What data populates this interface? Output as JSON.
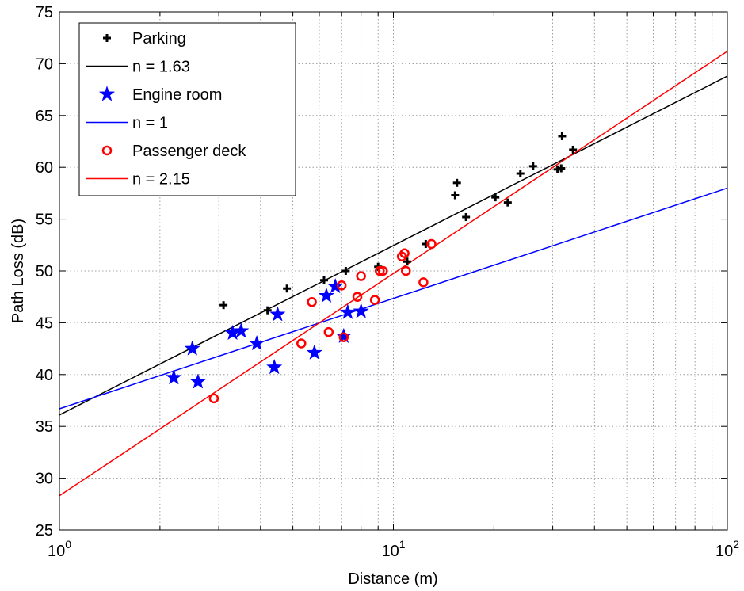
{
  "chart_data": {
    "type": "scatter",
    "title": "",
    "xlabel": "Distance (m)",
    "ylabel": "Path Loss (dB)",
    "xscale": "log",
    "xlim": [
      1,
      100
    ],
    "ylim": [
      25,
      75
    ],
    "grid": true,
    "legend_position": "top-left",
    "x_ticks": [
      {
        "value": 1,
        "base": "10",
        "exp": "0"
      },
      {
        "value": 10,
        "base": "10",
        "exp": "1"
      },
      {
        "value": 100,
        "base": "10",
        "exp": "2"
      }
    ],
    "y_ticks": [
      "25",
      "30",
      "35",
      "40",
      "45",
      "50",
      "55",
      "60",
      "65",
      "70",
      "75"
    ],
    "series": [
      {
        "name": "Parking",
        "kind": "points",
        "marker": "plus",
        "color": "#000000",
        "points": [
          [
            3.1,
            46.7
          ],
          [
            4.2,
            46.2
          ],
          [
            4.8,
            48.3
          ],
          [
            6.2,
            49.1
          ],
          [
            7.2,
            50.0
          ],
          [
            9.0,
            50.4
          ],
          [
            11.0,
            50.9
          ],
          [
            12.5,
            52.6
          ],
          [
            15.3,
            57.3
          ],
          [
            15.5,
            58.5
          ],
          [
            16.5,
            55.2
          ],
          [
            20.2,
            57.1
          ],
          [
            22.0,
            56.6
          ],
          [
            24.0,
            59.4
          ],
          [
            26.2,
            60.1
          ],
          [
            31.0,
            59.8
          ],
          [
            31.8,
            59.9
          ],
          [
            32.0,
            63.0
          ],
          [
            34.5,
            61.7
          ]
        ]
      },
      {
        "name": "n = 1.63",
        "kind": "line",
        "color": "#000000",
        "points": [
          [
            1,
            36.1
          ],
          [
            100,
            68.8
          ]
        ]
      },
      {
        "name": "Engine room",
        "kind": "points",
        "marker": "star",
        "color": "#0000ff",
        "points": [
          [
            2.2,
            39.7
          ],
          [
            2.5,
            42.5
          ],
          [
            2.6,
            39.3
          ],
          [
            3.3,
            44.0
          ],
          [
            3.5,
            44.2
          ],
          [
            3.9,
            43.0
          ],
          [
            4.4,
            40.7
          ],
          [
            4.5,
            45.8
          ],
          [
            5.8,
            42.1
          ],
          [
            6.3,
            47.6
          ],
          [
            6.7,
            48.5
          ],
          [
            7.1,
            43.7
          ],
          [
            7.3,
            46.0
          ],
          [
            8.0,
            46.1
          ]
        ]
      },
      {
        "name": "n = 1",
        "kind": "line",
        "color": "#0000ff",
        "points": [
          [
            1,
            36.7
          ],
          [
            100,
            58.0
          ]
        ]
      },
      {
        "name": "Passenger deck",
        "kind": "points",
        "marker": "circle",
        "color": "#ff0000",
        "points": [
          [
            2.9,
            37.7
          ],
          [
            5.3,
            43.0
          ],
          [
            5.7,
            47.0
          ],
          [
            6.4,
            44.1
          ],
          [
            7.0,
            48.6
          ],
          [
            7.1,
            43.6
          ],
          [
            7.8,
            47.5
          ],
          [
            8.0,
            49.5
          ],
          [
            8.8,
            47.2
          ],
          [
            9.1,
            50.0
          ],
          [
            9.3,
            50.0
          ],
          [
            10.6,
            51.4
          ],
          [
            10.8,
            51.7
          ],
          [
            10.9,
            50.0
          ],
          [
            12.3,
            48.9
          ],
          [
            13.0,
            52.6
          ]
        ]
      },
      {
        "name": "n = 2.15",
        "kind": "line",
        "color": "#ff0000",
        "points": [
          [
            1,
            28.3
          ],
          [
            100,
            71.2
          ]
        ]
      }
    ]
  }
}
